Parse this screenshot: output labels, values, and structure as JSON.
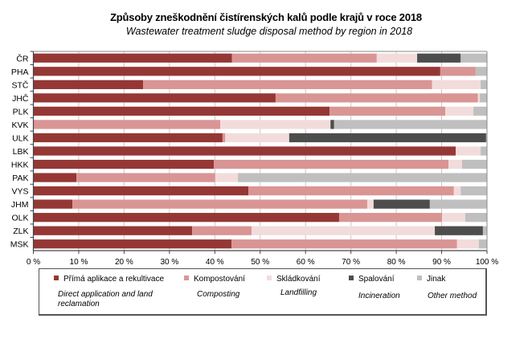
{
  "chart_data": {
    "type": "bar",
    "orientation": "horizontal",
    "stacked": "percent",
    "title": "Způsoby  zneškodnění čistírenských  kalů podle krajů v roce 2018",
    "subtitle": "Wastewater treatment sludge disposal method by region in 2018",
    "xlabel": "",
    "ylabel": "",
    "xlim": [
      0,
      100
    ],
    "x_ticks": [
      "0 %",
      "10 %",
      "20 %",
      "30 %",
      "40 %",
      "50 %",
      "60 %",
      "70 %",
      "80 %",
      "90 %",
      "100 %"
    ],
    "grid": "vertical",
    "legend_position": "bottom",
    "categories": [
      "ČR",
      "PHA",
      "STČ",
      "JHČ",
      "PLK",
      "KVK",
      "ULK",
      "LBK",
      "HKK",
      "PAK",
      "VYS",
      "JHM",
      "OLK",
      "ZLK",
      "MSK"
    ],
    "series": [
      {
        "name": "Přímá aplikace a rekultivace",
        "name_en": "Direct application and land reclamation",
        "color": "#953735",
        "values": [
          43.8,
          89.7,
          24.2,
          53.4,
          65.3,
          0,
          41.7,
          93.1,
          39.8,
          9.5,
          47.4,
          8.6,
          67.4,
          35.0,
          43.7
        ]
      },
      {
        "name": "Kompostování",
        "name_en": "Composting",
        "color": "#d99594",
        "values": [
          31.9,
          7.8,
          63.7,
          44.6,
          25.5,
          41.2,
          0.6,
          0,
          51.7,
          30.6,
          45.3,
          65.0,
          22.7,
          13.1,
          49.7
        ]
      },
      {
        "name": "Skládkování",
        "name_en": "Landfilling",
        "color": "#f2dcdb",
        "values": [
          8.9,
          0,
          10.7,
          0.4,
          6.2,
          24.3,
          14.1,
          5.5,
          3.0,
          5.0,
          1.5,
          1.4,
          5.1,
          40.4,
          4.8
        ]
      },
      {
        "name": "Spalování",
        "name_en": "Incineration",
        "color": "#4d4d4d",
        "values": [
          9.6,
          0,
          0,
          0,
          0,
          0.8,
          43.4,
          0,
          0,
          0,
          0,
          12.4,
          0,
          10.6,
          0
        ]
      },
      {
        "name": "Jinak",
        "name_en": "Other method",
        "color": "#bfbfbf",
        "values": [
          5.8,
          2.5,
          1.4,
          1.6,
          3.0,
          33.7,
          0.2,
          1.4,
          5.5,
          54.9,
          5.8,
          12.6,
          4.8,
          0.9,
          1.8
        ]
      }
    ]
  }
}
